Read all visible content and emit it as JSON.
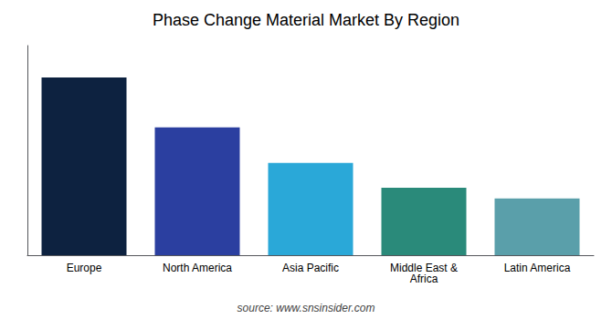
{
  "chart_data": {
    "type": "bar",
    "title": "Phase Change Material Market By Region",
    "categories": [
      "Europe",
      "North America",
      "Asia Pacific",
      "Middle East &\nAfrica",
      "Latin America"
    ],
    "values": [
      100,
      72,
      52,
      38,
      32
    ],
    "colors": [
      "#0d2240",
      "#2b3fa0",
      "#2aa8d8",
      "#2a8a7a",
      "#5a9faa"
    ],
    "ylim": [
      0,
      118
    ],
    "tick_labels": "x",
    "grid": false,
    "annotations": [
      "source: www.snsinsider.com"
    ]
  }
}
